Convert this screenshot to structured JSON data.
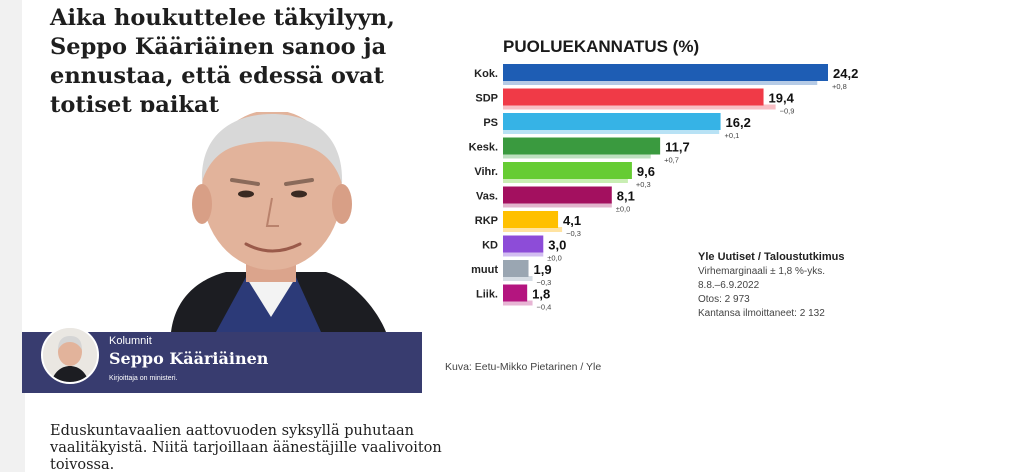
{
  "article": {
    "headline": "Aika houkuttelee täkyilyyn, Seppo Kääriäinen sanoo ja ennustaa, että edessä ovat totiset paikat",
    "section": "Kolumnit",
    "author": "Seppo Kääriäinen",
    "author_role": "Kirjoittaja on ministeri.",
    "lead": "Eduskuntavaalien aattovuoden syksyllä puhutaan vaalitäkyistä. Niitä tarjoillaan äänestäjille vaalivoiton toivossa."
  },
  "image_caption": "Kuva: Eetu-Mikko Pietarinen / Yle",
  "chart_data": {
    "type": "bar",
    "orientation": "horizontal",
    "title": "PUOLUEKANNATUS (%)",
    "categories": [
      "Kok.",
      "SDP",
      "PS",
      "Kesk.",
      "Vihr.",
      "Vas.",
      "RKP",
      "KD",
      "muut",
      "Liik."
    ],
    "values": [
      24.2,
      19.4,
      16.2,
      11.7,
      9.6,
      8.1,
      4.1,
      3.0,
      1.9,
      1.8
    ],
    "value_labels": [
      "24,2",
      "19,4",
      "16,2",
      "11,7",
      "9,6",
      "8,1",
      "4,1",
      "3,0",
      "1,9",
      "1,8"
    ],
    "change_labels": [
      "+0,8",
      "−0,9",
      "+0,1",
      "+0,7",
      "+0,3",
      "±0,0",
      "−0,3",
      "±0,0",
      "−0,3",
      "−0,4"
    ],
    "colors": [
      "#1e5db4",
      "#f03a47",
      "#36b3e6",
      "#3a9a3f",
      "#66cc33",
      "#a3105f",
      "#ffc000",
      "#8d4cd8",
      "#9aa6b2",
      "#b4157f"
    ],
    "previous_colors": [
      "#b6cbe6",
      "#f7bec4",
      "#b8e2f5",
      "#bde0bf",
      "#c9eeb3",
      "#e2b4cc",
      "#ffe3a1",
      "#d2bdf1",
      "#d6dde4",
      "#e7b5d4"
    ],
    "source": {
      "name": "Yle Uutiset / Taloustutkimus",
      "margin": "Virhemarginaali ± 1,8 %-yks.",
      "dates": "8.8.–6.9.2022",
      "sample": "Otos: 2 973",
      "respondents": "Kantansa ilmoittaneet: 2 132"
    }
  }
}
